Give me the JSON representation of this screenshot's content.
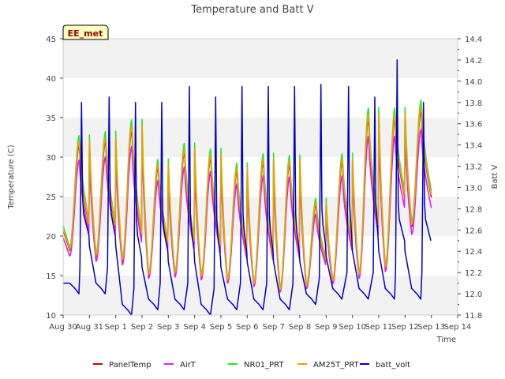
{
  "chart_data": {
    "type": "line",
    "title": "Temperature and Batt V",
    "xlabel": "Time",
    "ylabel": "Temperature (C)",
    "y2label": "Batt V",
    "station_label": "EE_met",
    "x_ticks": [
      "Aug 30",
      "Aug 31",
      "Sep 1",
      "Sep 2",
      "Sep 3",
      "Sep 4",
      "Sep 5",
      "Sep 6",
      "Sep 7",
      "Sep 8",
      "Sep 9",
      "Sep 10",
      "Sep 11",
      "Sep 12",
      "Sep 13",
      "Sep 14"
    ],
    "xlim": [
      0,
      15
    ],
    "ylim": [
      10,
      45
    ],
    "y_ticks": [
      10,
      15,
      20,
      25,
      30,
      35,
      40,
      45
    ],
    "y2lim": [
      11.8,
      14.4
    ],
    "y2_ticks": [
      "11.8",
      "12.0",
      "12.2",
      "12.4",
      "12.6",
      "12.8",
      "13.0",
      "13.2",
      "13.4",
      "13.6",
      "13.8",
      "14.0",
      "14.2",
      "14.4"
    ],
    "grid_bands": true,
    "legend_position": "bottom",
    "days": [
      {
        "peak": 32.5,
        "trough": 18.3
      },
      {
        "peak": 33.0,
        "trough": 17.5
      },
      {
        "peak": 34.5,
        "trough": 17.0
      },
      {
        "peak": 29.5,
        "trough": 15.0
      },
      {
        "peak": 31.5,
        "trough": 15.2
      },
      {
        "peak": 30.8,
        "trough": 14.8
      },
      {
        "peak": 29.0,
        "trough": 14.3
      },
      {
        "peak": 30.2,
        "trough": 13.8
      },
      {
        "peak": 30.0,
        "trough": 13.0
      },
      {
        "peak": 24.5,
        "trough": 13.5
      },
      {
        "peak": 30.2,
        "trough": 14.2
      },
      {
        "peak": 36.0,
        "trough": 15.0
      },
      {
        "peak": 36.0,
        "trough": 16.0
      },
      {
        "peak": 37.0,
        "trough": 21.5
      }
    ],
    "first_value": 21.0,
    "batt_days": [
      {
        "peak": 13.8,
        "low": 12.0,
        "spike_x": 0.7
      },
      {
        "peak": 13.85,
        "low": 12.0,
        "spike_x": 0.75
      },
      {
        "peak": 13.8,
        "low": 11.8,
        "spike_x": 0.75
      },
      {
        "peak": 13.8,
        "low": 11.85,
        "spike_x": 0.75
      },
      {
        "peak": 13.95,
        "low": 11.85,
        "spike_x": 0.8
      },
      {
        "peak": 13.85,
        "low": 11.8,
        "spike_x": 0.8
      },
      {
        "peak": 13.95,
        "low": 11.85,
        "spike_x": 0.8
      },
      {
        "peak": 13.95,
        "low": 11.85,
        "spike_x": 0.8
      },
      {
        "peak": 13.95,
        "low": 11.85,
        "spike_x": 0.8
      },
      {
        "peak": 13.97,
        "low": 11.9,
        "spike_x": 0.8
      },
      {
        "peak": 13.95,
        "low": 11.95,
        "spike_x": 0.85
      },
      {
        "peak": 13.85,
        "low": 11.95,
        "spike_x": 0.85
      },
      {
        "peak": 14.2,
        "low": 11.95,
        "spike_x": 0.7
      },
      {
        "peak": 13.8,
        "low": 11.95,
        "spike_x": 0.7
      }
    ],
    "batt_first_value": 12.1,
    "series": [
      {
        "name": "PanelTemp",
        "color": "#cc0000",
        "offset": 0.0,
        "scale": 0.95
      },
      {
        "name": "AirT",
        "color": "#e020e0",
        "offset": -0.5,
        "scale": 0.86
      },
      {
        "name": "NR01_PRT",
        "color": "#22ee22",
        "offset": 0.3,
        "scale": 1.0
      },
      {
        "name": "AM25T_PRT",
        "color": "#f0a000",
        "offset": 0.1,
        "scale": 0.97
      },
      {
        "name": "batt_volt",
        "color": "#0000cc",
        "axis": "right"
      }
    ]
  }
}
